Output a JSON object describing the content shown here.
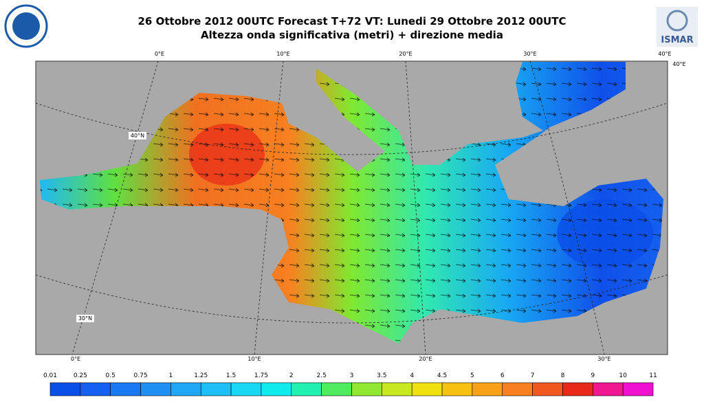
{
  "header": {
    "title": "26 Ottobre 2012 00UTC Forecast T+72 VT: Lunedi 29 Ottobre 2012 00UTC",
    "subtitle": "Altezza onda significativa (metri) + direzione media",
    "logo_right": "ISMAR"
  },
  "graticule": {
    "top": [
      "0°E",
      "10°E",
      "20°E",
      "30°E",
      "40°E"
    ],
    "right": "40°E",
    "bottom": [
      "0°E",
      "10°E",
      "20°E",
      "30°E"
    ],
    "left": [
      "40°N",
      "30°N"
    ]
  },
  "colorbar": {
    "labels": [
      "0.01",
      "0.25",
      "0.5",
      "0.75",
      "1",
      "1.25",
      "1.5",
      "1.75",
      "2",
      "2.5",
      "3",
      "3.5",
      "4",
      "4.5",
      "5",
      "6",
      "7",
      "8",
      "9",
      "10",
      "11"
    ],
    "colors": [
      "#0a4fe8",
      "#1460f0",
      "#1a78f2",
      "#1e90f4",
      "#20a8f6",
      "#1cc0f6",
      "#18d8f4",
      "#10ecee",
      "#20f0b0",
      "#50ec60",
      "#90e830",
      "#c8e820",
      "#f0e010",
      "#f8c010",
      "#f8a018",
      "#f88020",
      "#f05820",
      "#e82818",
      "#f01890",
      "#f010d0"
    ]
  }
}
